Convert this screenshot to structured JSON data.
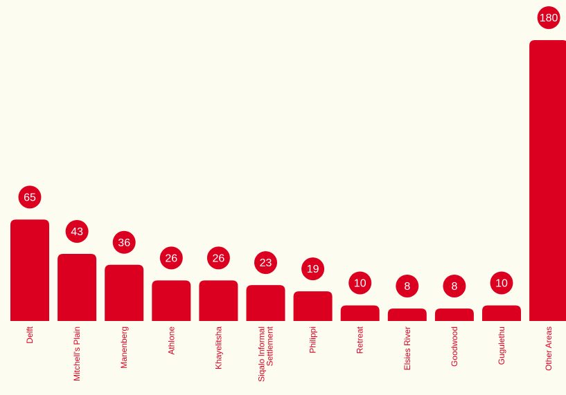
{
  "colors": {
    "bar": "#dc0020",
    "label_text": "#ffffff",
    "category_text": "#dc0020",
    "background": "#fdfcf0"
  },
  "chart_data": {
    "type": "bar",
    "categories": [
      "Delft",
      "Mitchell's Plain",
      "Manenberg",
      "Athlone",
      "Khayelitsha",
      "Siqalo Informal Settlement",
      "Philippi",
      "Retreat",
      "Elsies River",
      "Goodwood",
      "Gugulethu",
      "Other Areas"
    ],
    "category_lines": [
      [
        "Delft"
      ],
      [
        "Mitchell's Plain"
      ],
      [
        "Manenberg"
      ],
      [
        "Athlone"
      ],
      [
        "Khayelitsha"
      ],
      [
        "Siqalo Informal",
        "Settlement"
      ],
      [
        "Philippi"
      ],
      [
        "Retreat"
      ],
      [
        "Elsies River"
      ],
      [
        "Goodwood"
      ],
      [
        "Gugulethu"
      ],
      [
        "Other Areas"
      ]
    ],
    "values": [
      65,
      43,
      36,
      26,
      26,
      23,
      19,
      10,
      8,
      8,
      10,
      180
    ],
    "data_labels": [
      "65",
      "43",
      "36",
      "26",
      "26",
      "23",
      "19",
      "10",
      "8",
      "8",
      "10",
      "180"
    ],
    "title": "",
    "xlabel": "",
    "ylabel": "",
    "ylim": [
      0,
      180
    ],
    "grid": false,
    "legend": "none"
  }
}
